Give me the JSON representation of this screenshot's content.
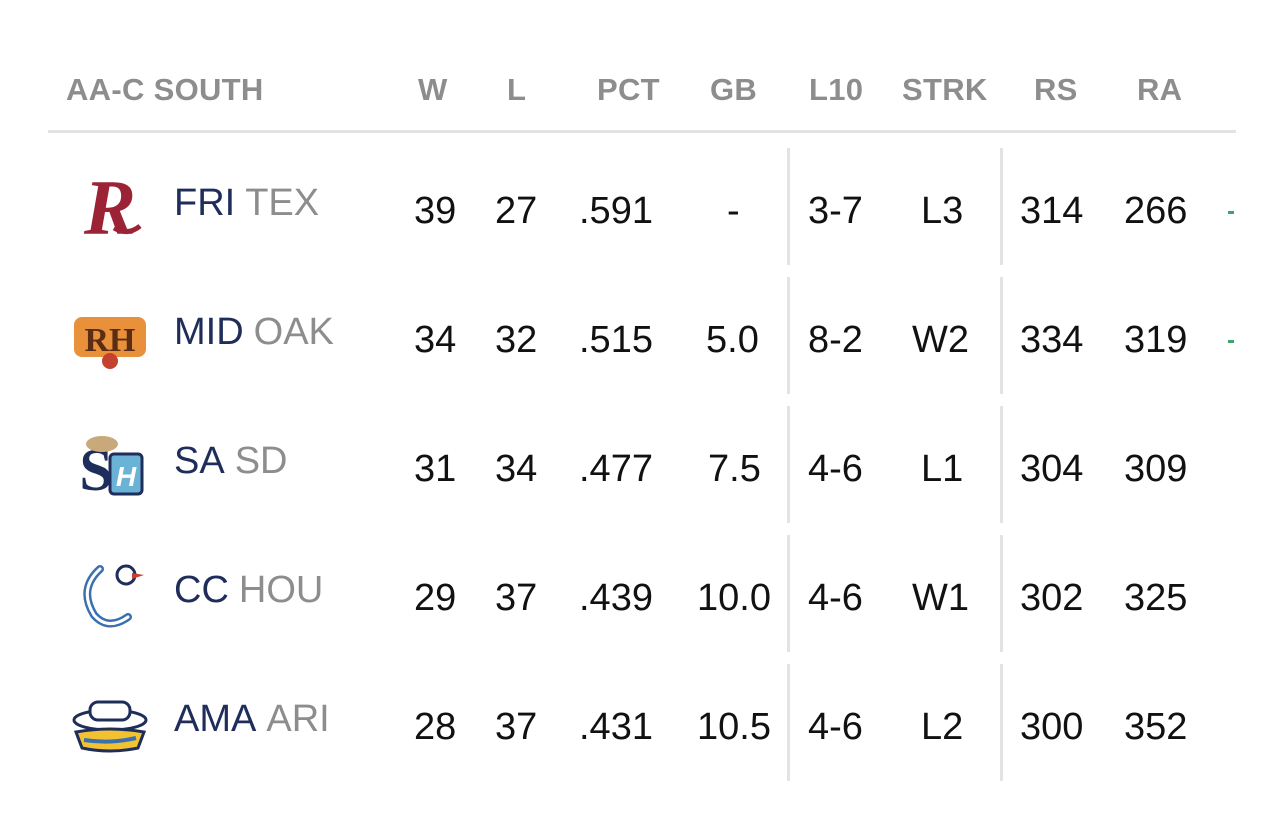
{
  "header": {
    "division": "AA-C SOUTH",
    "columns": [
      "W",
      "L",
      "PCT",
      "GB",
      "L10",
      "STRK",
      "RS",
      "RA"
    ]
  },
  "colors": {
    "team_abbr": "#1f2d5a",
    "parent_abbr": "#8d8d8d",
    "divider": "#e3e3e3",
    "trend_marker": "#3fa36a"
  },
  "teams": [
    {
      "abbr": "FRI",
      "parent": "TEX",
      "logo_icon": "frisco-roughriders-logo-icon",
      "w": "39",
      "l": "27",
      "pct": ".591",
      "gb": "-",
      "l10": "3-7",
      "strk": "L3",
      "rs": "314",
      "ra": "266",
      "trend": true
    },
    {
      "abbr": "MID",
      "parent": "OAK",
      "logo_icon": "midland-rockhounds-logo-icon",
      "w": "34",
      "l": "32",
      "pct": ".515",
      "gb": "5.0",
      "l10": "8-2",
      "strk": "W2",
      "rs": "334",
      "ra": "319",
      "trend": true
    },
    {
      "abbr": "SA",
      "parent": "SD",
      "logo_icon": "san-antonio-missions-logo-icon",
      "w": "31",
      "l": "34",
      "pct": ".477",
      "gb": "7.5",
      "l10": "4-6",
      "strk": "L1",
      "rs": "304",
      "ra": "309",
      "trend": false
    },
    {
      "abbr": "CC",
      "parent": "HOU",
      "logo_icon": "corpus-christi-hooks-logo-icon",
      "w": "29",
      "l": "37",
      "pct": ".439",
      "gb": "10.0",
      "l10": "4-6",
      "strk": "W1",
      "rs": "302",
      "ra": "325",
      "trend": false
    },
    {
      "abbr": "AMA",
      "parent": "ARI",
      "logo_icon": "amarillo-sod-poodles-logo-icon",
      "w": "28",
      "l": "37",
      "pct": ".431",
      "gb": "10.5",
      "l10": "4-6",
      "strk": "L2",
      "rs": "300",
      "ra": "352",
      "trend": false
    }
  ]
}
